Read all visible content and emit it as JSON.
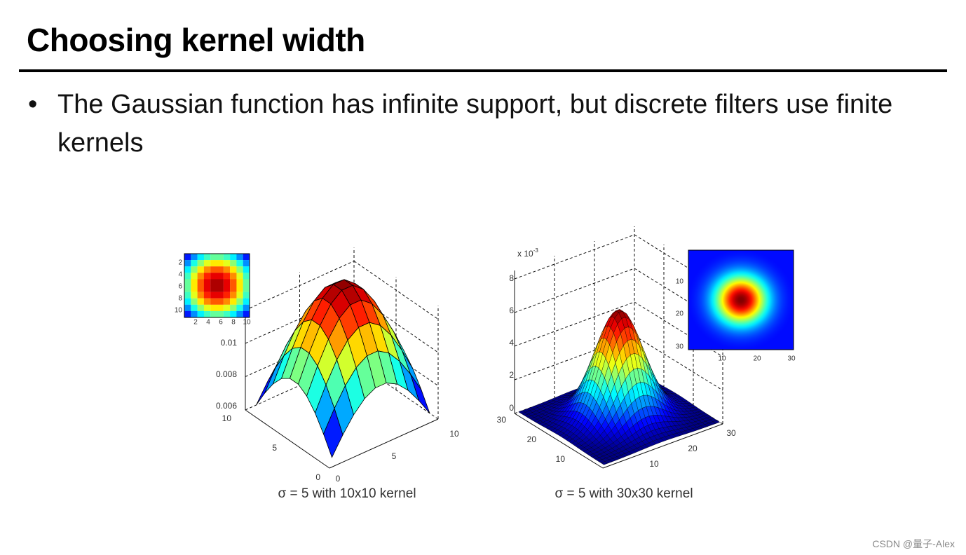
{
  "header": {
    "title": "Choosing kernel width"
  },
  "bullets": [
    "The Gaussian function has infinite support, but discrete filters use finite kernels"
  ],
  "figures": [
    {
      "caption": "σ = 5 with 10x10 kernel",
      "inset_x_ticks": [
        "2",
        "4",
        "6",
        "8",
        "10"
      ],
      "inset_y_ticks": [
        "2",
        "4",
        "6",
        "8",
        "10"
      ],
      "z_ticks": [
        "0.01",
        "0.008",
        "0.006"
      ],
      "y_ticks": [
        "10",
        "5",
        "0"
      ],
      "x_ticks": [
        "0",
        "5",
        "10"
      ]
    },
    {
      "caption": "σ = 5 with 30x30 kernel",
      "z_multiplier": {
        "base": "x 10",
        "exponent": "-3"
      },
      "inset_x_ticks": [
        "10",
        "20",
        "30"
      ],
      "inset_y_ticks": [
        "10",
        "20",
        "30"
      ],
      "z_ticks": [
        "8",
        "6",
        "4",
        "2",
        "0"
      ],
      "y_ticks": [
        "30",
        "20",
        "10"
      ],
      "x_ticks": [
        "10",
        "20",
        "30"
      ]
    }
  ],
  "watermark": "CSDN @量子-Alex"
}
